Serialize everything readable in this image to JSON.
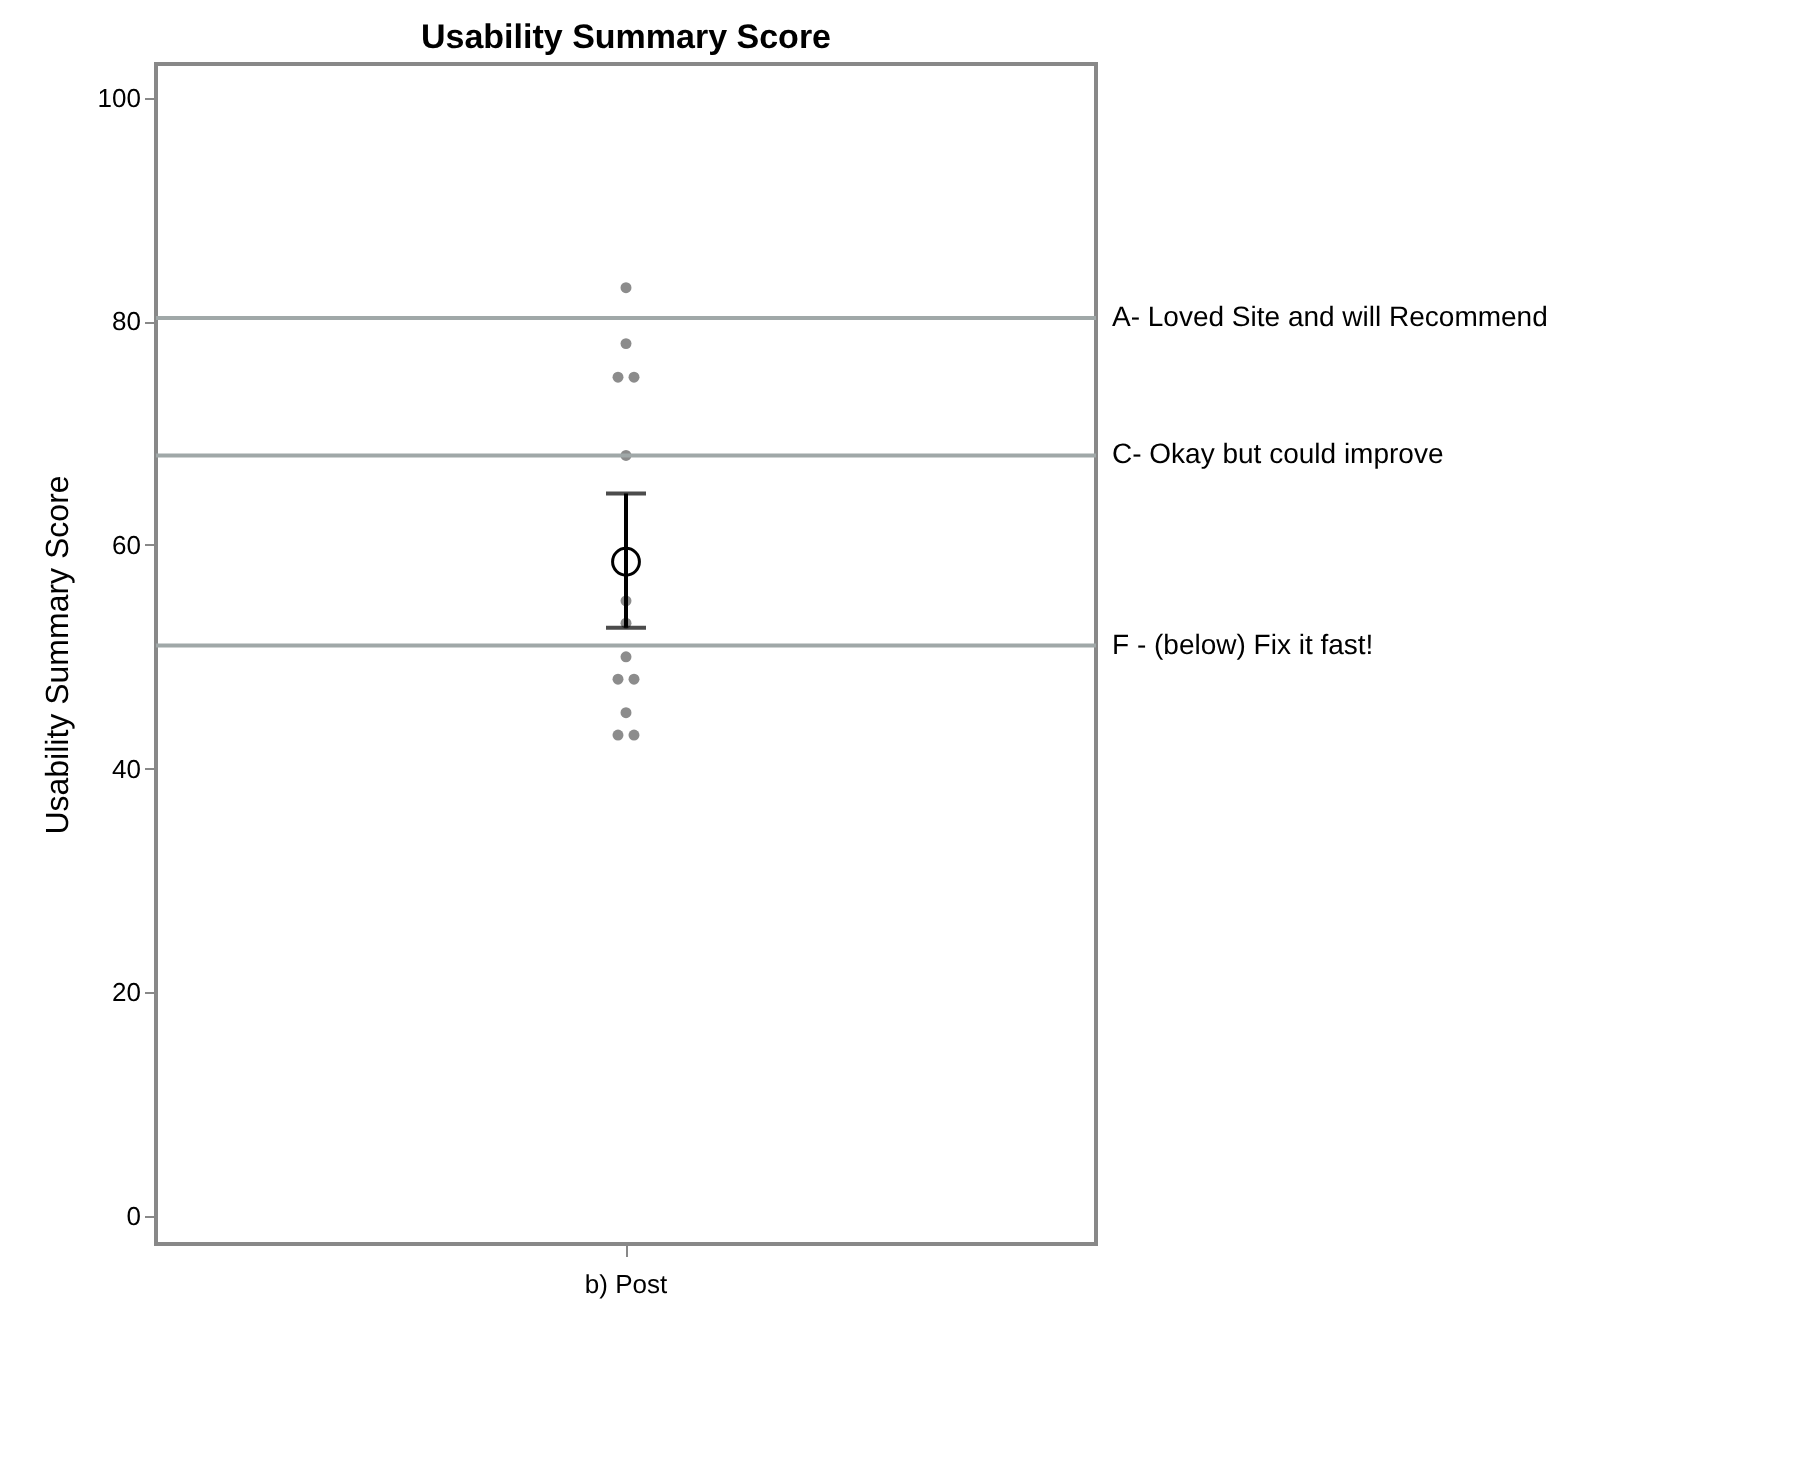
{
  "chart_data": {
    "type": "scatter",
    "title": "Usability Summary Score",
    "ylabel": "Usability Summary Score",
    "categories": [
      "b) Post"
    ],
    "ylim": [
      -2.5,
      103
    ],
    "yticks": [
      0,
      20,
      40,
      60,
      80,
      100
    ],
    "grid": false,
    "series": [
      {
        "color": "#8c8c8c",
        "marker": "circle",
        "x": [
          "b) Post",
          "b) Post",
          "b) Post",
          "b) Post",
          "b) Post",
          "b) Post",
          "b) Post",
          "b) Post",
          "b) Post",
          "b) Post",
          "b) Post",
          "b) Post",
          "b) Post"
        ],
        "values": [
          83,
          78,
          75,
          75,
          68,
          55,
          53,
          50,
          48,
          48,
          45,
          43,
          43
        ]
      },
      {
        "color": "#000000",
        "marker": "circle",
        "x": [
          "b) Post"
        ],
        "values": [
          58.5
        ],
        "errors": [
          [
            52.6,
            64.6
          ]
        ]
      }
    ],
    "ref_lines": [
      {
        "axis": "y",
        "value": 80.3,
        "label": "A- Loved Site and will Recommend",
        "color": "#a0a8a8"
      },
      {
        "axis": "y",
        "value": 68,
        "label": "C- Okay but could improve",
        "color": "#a0a8a8"
      },
      {
        "axis": "y",
        "value": 51,
        "label": "F - (below) Fix it fast!",
        "color": "#a0a8a8"
      }
    ]
  }
}
